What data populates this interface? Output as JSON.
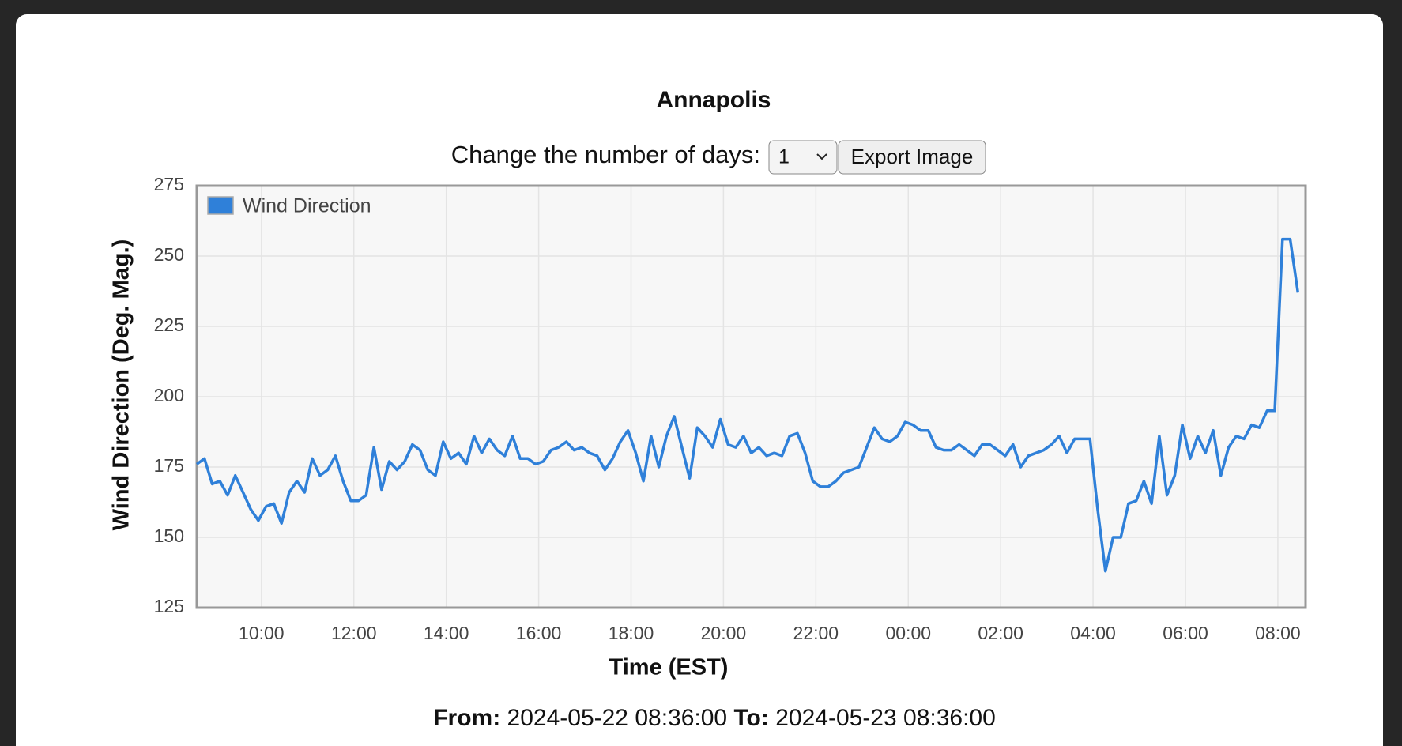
{
  "page": {
    "controls": {
      "days_label": "Change the number of days:",
      "days_value": "1",
      "export_button": "Export Image"
    },
    "footer": {
      "from_label": "From:",
      "from_value": "2024-05-22 08:36:00",
      "to_label": "To:",
      "to_value": "2024-05-23 08:36:00"
    }
  },
  "chart_data": {
    "type": "line",
    "title": "Annapolis",
    "xlabel": "Time (EST)",
    "ylabel": "Wind Direction (Deg. Mag.)",
    "xlim": [
      "08:36",
      "08:36"
    ],
    "xticks": [
      "10:00",
      "12:00",
      "14:00",
      "16:00",
      "18:00",
      "20:00",
      "22:00",
      "00:00",
      "02:00",
      "04:00",
      "06:00",
      "08:00"
    ],
    "ylim": [
      125,
      275
    ],
    "yticks": [
      125,
      150,
      175,
      200,
      225,
      250,
      275
    ],
    "grid": true,
    "legend": "upper left",
    "x": [
      "08:36",
      "08:46",
      "08:56",
      "09:06",
      "09:16",
      "09:26",
      "09:36",
      "09:46",
      "09:56",
      "10:06",
      "10:16",
      "10:26",
      "10:36",
      "10:46",
      "10:56",
      "11:06",
      "11:16",
      "11:26",
      "11:36",
      "11:46",
      "11:56",
      "12:06",
      "12:16",
      "12:26",
      "12:36",
      "12:46",
      "12:56",
      "13:06",
      "13:16",
      "13:26",
      "13:36",
      "13:46",
      "13:56",
      "14:06",
      "14:16",
      "14:26",
      "14:36",
      "14:46",
      "14:56",
      "15:06",
      "15:16",
      "15:26",
      "15:36",
      "15:46",
      "15:56",
      "16:06",
      "16:16",
      "16:26",
      "16:36",
      "16:46",
      "16:56",
      "17:06",
      "17:16",
      "17:26",
      "17:36",
      "17:46",
      "17:56",
      "18:06",
      "18:16",
      "18:26",
      "18:36",
      "18:46",
      "18:56",
      "19:06",
      "19:16",
      "19:26",
      "19:36",
      "19:46",
      "19:56",
      "20:06",
      "20:16",
      "20:26",
      "20:36",
      "20:46",
      "20:56",
      "21:06",
      "21:16",
      "21:26",
      "21:36",
      "21:46",
      "21:56",
      "22:06",
      "22:16",
      "22:26",
      "22:36",
      "22:46",
      "22:56",
      "23:06",
      "23:16",
      "23:26",
      "23:36",
      "23:46",
      "23:56",
      "00:06",
      "00:16",
      "00:26",
      "00:36",
      "00:46",
      "00:56",
      "01:06",
      "01:16",
      "01:26",
      "01:36",
      "01:46",
      "01:56",
      "02:06",
      "02:16",
      "02:26",
      "02:36",
      "02:46",
      "02:56",
      "03:06",
      "03:16",
      "03:26",
      "03:36",
      "03:46",
      "03:56",
      "04:06",
      "04:16",
      "04:26",
      "04:36",
      "04:46",
      "04:56",
      "05:06",
      "05:16",
      "05:26",
      "05:36",
      "05:46",
      "05:56",
      "06:06",
      "06:16",
      "06:26",
      "06:36",
      "06:46",
      "06:56",
      "07:06",
      "07:16",
      "07:26",
      "07:36",
      "07:46",
      "07:56",
      "08:06",
      "08:16",
      "08:26"
    ],
    "series": [
      {
        "name": "Wind Direction",
        "color": "#2f80d9",
        "values": [
          176,
          178,
          169,
          170,
          165,
          172,
          166,
          160,
          156,
          161,
          162,
          155,
          166,
          170,
          166,
          178,
          172,
          174,
          179,
          170,
          163,
          163,
          165,
          182,
          167,
          177,
          174,
          177,
          183,
          181,
          174,
          172,
          184,
          178,
          180,
          176,
          186,
          180,
          185,
          181,
          179,
          186,
          178,
          178,
          176,
          177,
          181,
          182,
          184,
          181,
          182,
          180,
          179,
          174,
          178,
          184,
          188,
          180,
          170,
          186,
          175,
          186,
          193,
          182,
          171,
          189,
          186,
          182,
          192,
          183,
          182,
          186,
          180,
          182,
          179,
          180,
          179,
          186,
          187,
          180,
          170,
          168,
          168,
          170,
          173,
          174,
          175,
          182,
          189,
          185,
          184,
          186,
          191,
          190,
          188,
          188,
          182,
          181,
          181,
          183,
          181,
          179,
          183,
          183,
          181,
          179,
          183,
          175,
          179,
          180,
          181,
          183,
          186,
          180,
          185,
          185,
          185,
          160,
          138,
          150,
          150,
          162,
          163,
          170,
          162,
          186,
          165,
          172,
          190,
          178,
          186,
          180,
          188,
          172,
          182,
          186,
          185,
          190,
          189,
          195,
          195,
          256,
          256,
          237
        ]
      }
    ]
  }
}
